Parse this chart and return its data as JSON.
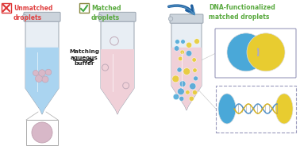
{
  "bg_color": "#ffffff",
  "label_unmatched": "Unmatched\ndroplets",
  "label_matched": "Matched\ndroplets",
  "label_dna": "DNA-functionalized\nmatched droplets",
  "label_buffer": "Matching\naqueous\nbuffer",
  "color_unmatched_label": "#e04040",
  "color_matched_label": "#5aaa40",
  "color_dna_label": "#5aaa40",
  "color_buffer_label": "#222222",
  "tube1_fill": "#aad4f0",
  "tube2_fill": "#f0d0d8",
  "tube_body": "#dde4ec",
  "tube_outline": "#9aa4b0",
  "tube_cap": "#ccd4dc",
  "droplet_blue": "#4aa8d8",
  "droplet_yellow": "#e8cc30",
  "droplet_pink": "#d8b8c8",
  "arrow_color": "#2060a0",
  "figsize": [
    3.78,
    1.84
  ],
  "dpi": 100
}
